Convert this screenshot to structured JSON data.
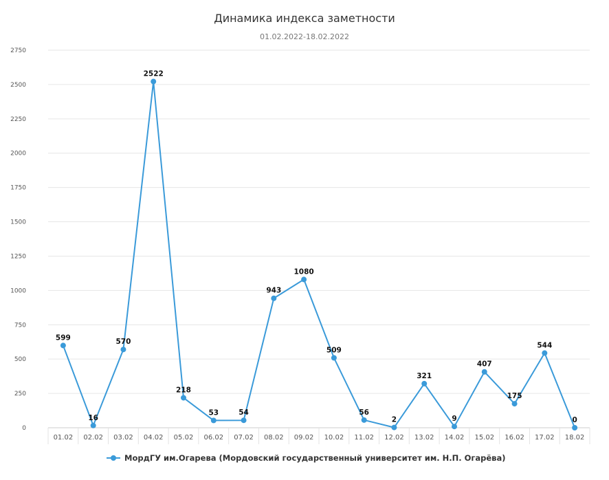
{
  "chart_data": {
    "type": "line",
    "title": "Динамика индекса заметности",
    "subtitle": "01.02.2022-18.02.2022",
    "categories": [
      "01.02",
      "02.02",
      "03.02",
      "04.02",
      "05.02",
      "06.02",
      "07.02",
      "08.02",
      "09.02",
      "10.02",
      "11.02",
      "12.02",
      "13.02",
      "14.02",
      "15.02",
      "16.02",
      "17.02",
      "18.02"
    ],
    "series": [
      {
        "name": "МордГУ им.Огарева (Мордовский государственный университет им. Н.П. Огарёва)",
        "values": [
          599,
          16,
          570,
          2522,
          218,
          53,
          54,
          943,
          1080,
          509,
          56,
          2,
          321,
          9,
          407,
          175,
          544,
          0
        ]
      }
    ],
    "ylim": [
      0,
      2750
    ],
    "yticks": [
      0,
      250,
      500,
      750,
      1000,
      1250,
      1500,
      1750,
      2000,
      2250,
      2500,
      2750
    ],
    "grid": true,
    "legend_position": "bottom-center",
    "data_labels": true,
    "colors": {
      "series": "#3A9AD9",
      "grid": "#E6E6E6"
    }
  }
}
